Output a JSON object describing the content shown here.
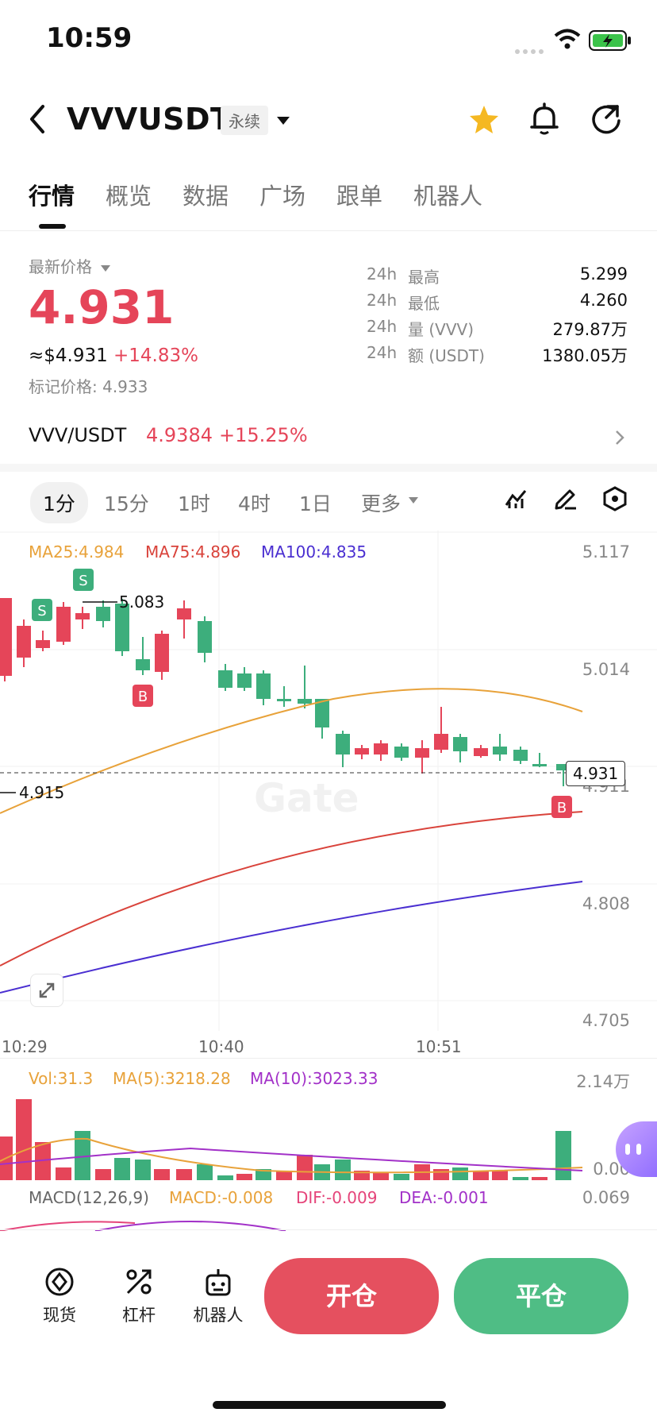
{
  "status": {
    "time": "10:59"
  },
  "header": {
    "symbol": "VVVUSDT",
    "contract_tag": "永续"
  },
  "tabs": [
    {
      "label": "行情"
    },
    {
      "label": "概览"
    },
    {
      "label": "数据"
    },
    {
      "label": "广场"
    },
    {
      "label": "跟单"
    },
    {
      "label": "机器人"
    }
  ],
  "price_panel": {
    "latest_label": "最新价格",
    "last_price": "4.931",
    "usd_price": "≈$4.931",
    "change_pct": "+14.83%",
    "mark_price": "标记价格: 4.933",
    "stats": [
      {
        "period": "24h",
        "label": "最高",
        "value": "5.299"
      },
      {
        "period": "24h",
        "label": "最低",
        "value": "4.260"
      },
      {
        "period": "24h",
        "label": "量 (VVV)",
        "value": "279.87万"
      },
      {
        "period": "24h",
        "label": "额 (USDT)",
        "value": "1380.05万"
      }
    ]
  },
  "spot_row": {
    "pair": "VVV/USDT",
    "price": "4.9384",
    "change": "+15.25%"
  },
  "intervals": [
    {
      "label": "1分"
    },
    {
      "label": "15分"
    },
    {
      "label": "1时"
    },
    {
      "label": "4时"
    },
    {
      "label": "1日"
    },
    {
      "label": "更多"
    }
  ],
  "chart": {
    "ma_legend": {
      "ma25": "MA25:4.984",
      "ma75": "MA75:4.896",
      "ma100": "MA100:4.835"
    },
    "y_ticks": [
      "5.117",
      "5.014",
      "4.911",
      "4.808",
      "4.705"
    ],
    "x_ticks": [
      "10:29",
      "10:40",
      "10:51"
    ],
    "high_marker": "5.083",
    "low_marker": "4.915",
    "current_price_tag": "4.931",
    "signal_labels": {
      "sell": "S",
      "buy": "B"
    },
    "watermark": "Gate",
    "colors": {
      "up": "#e54559",
      "down": "#3dae7c",
      "ma25": "#e8a23a",
      "ma75": "#d9433b",
      "ma100": "#4a2fd1"
    }
  },
  "volume": {
    "vol": "Vol:31.3",
    "ma5": "MA(5):3218.28",
    "ma10": "MA(10):3023.33",
    "y_top": "2.14万",
    "y_bottom": "0.00"
  },
  "macd": {
    "title": "MACD(12,26,9)",
    "macd": "MACD:-0.008",
    "dif": "DIF:-0.009",
    "dea": "DEA:-0.001",
    "y_top": "0.069"
  },
  "bottom_nav": [
    {
      "label": "现货"
    },
    {
      "label": "杠杆"
    },
    {
      "label": "机器人"
    }
  ],
  "actions": {
    "open": "开仓",
    "close": "平仓"
  }
}
